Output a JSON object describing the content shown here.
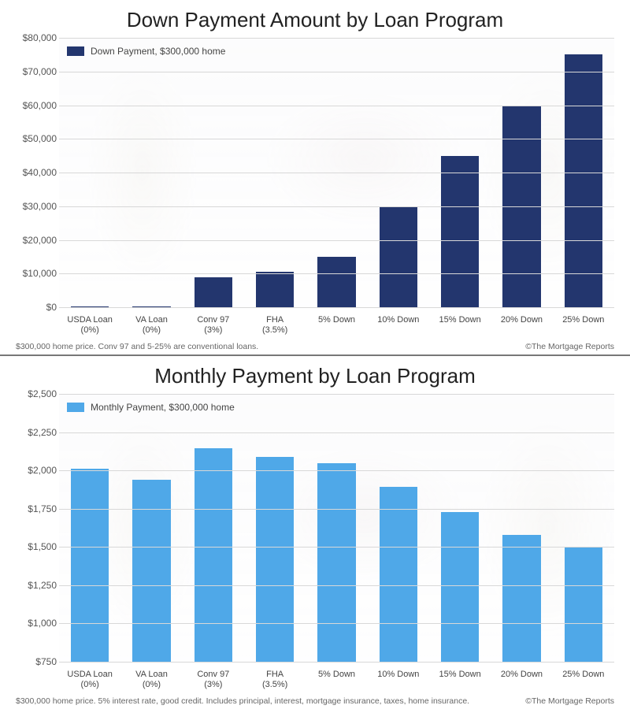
{
  "charts": [
    {
      "title": "Down Payment Amount by Loan Program",
      "type": "bar",
      "legend_label": "Down Payment, $300,000 home",
      "bar_color": "#23366e",
      "background_color": "#ffffff",
      "grid_color": "#d8d8d8",
      "title_fontsize": 26,
      "label_fontsize": 12,
      "footnote": "$300,000 home price. Conv 97 and 5-25% are conventional loans.",
      "copyright": "©The Mortgage Reports",
      "ylim": [
        0,
        80000
      ],
      "ytick_step": 10000,
      "ytick_labels": [
        "$0",
        "$10,000",
        "$20,000",
        "$30,000",
        "$40,000",
        "$50,000",
        "$60,000",
        "$70,000",
        "$80,000"
      ],
      "categories": [
        "USDA Loan",
        "VA Loan",
        "Conv 97",
        "FHA",
        "5% Down",
        "10% Down",
        "15% Down",
        "20% Down",
        "25% Down"
      ],
      "category_sub": [
        "(0%)",
        "(0%)",
        "(3%)",
        "(3.5%)",
        "",
        "",
        "",
        "",
        ""
      ],
      "values": [
        300,
        300,
        9000,
        10500,
        15000,
        30000,
        45000,
        60000,
        75000
      ],
      "bar_width": 0.62
    },
    {
      "title": "Monthly Payment by Loan Program",
      "type": "bar",
      "legend_label": "Monthly Payment, $300,000 home",
      "bar_color": "#4fa8e8",
      "background_color": "#ffffff",
      "grid_color": "#d8d8d8",
      "title_fontsize": 26,
      "label_fontsize": 12,
      "footnote": "$300,000 home price. 5% interest rate, good credit. Includes principal, interest, mortgage insurance, taxes, home insurance.",
      "copyright": "©The Mortgage Reports",
      "ylim": [
        750,
        2500
      ],
      "ytick_step": 250,
      "ytick_labels": [
        "$750",
        "$1,000",
        "$1,250",
        "$1,500",
        "$1,750",
        "$2,000",
        "$2,250",
        "$2,500"
      ],
      "categories": [
        "USDA Loan",
        "VA Loan",
        "Conv 97",
        "FHA",
        "5% Down",
        "10% Down",
        "15% Down",
        "20% Down",
        "25% Down"
      ],
      "category_sub": [
        "(0%)",
        "(0%)",
        "(3%)",
        "(3.5%)",
        "",
        "",
        "",
        "",
        ""
      ],
      "values": [
        2010,
        1940,
        2145,
        2090,
        2045,
        1895,
        1730,
        1580,
        1500
      ],
      "bar_width": 0.62
    }
  ]
}
